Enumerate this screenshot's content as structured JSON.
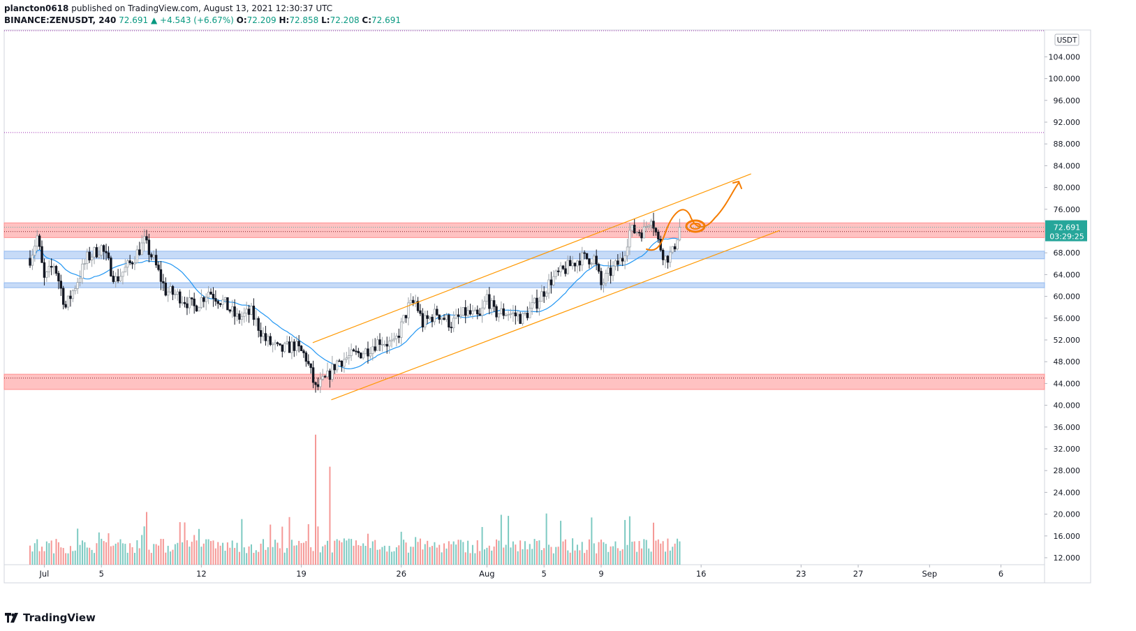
{
  "header": {
    "publisher": "plancton0618",
    "published_text": " published on TradingView.com, August 13, 2021 12:30:37 UTC",
    "symbol": "BINANCE:ZENUSDT, 240",
    "last": "72.691",
    "change": "▲ +4.543 (+6.67%)",
    "o_label": "O:",
    "o_value": "72.209",
    "h_label": "H:",
    "h_value": "72.858",
    "l_label": "L:",
    "l_value": "72.208",
    "c_label": "C:",
    "c_value": "72.691"
  },
  "footer": {
    "brand": "TradingView"
  },
  "colors": {
    "up": "#26a69a",
    "down": "#ef5350",
    "ma": "#2196f3",
    "candle_dark": "#131722",
    "channel": "#ff9800",
    "resistance_zone": "#ff8f8f",
    "support_zone": "#90b8f0",
    "price_label_bg": "#26a69a",
    "dotted_level": "#9c27b0"
  },
  "chart_data": {
    "type": "candlestick",
    "title": "BINANCE:ZENUSDT, 240",
    "currency_label": "USDT",
    "y_ticks": [
      "12.000",
      "16.000",
      "20.000",
      "24.000",
      "28.000",
      "32.000",
      "36.000",
      "40.000",
      "44.000",
      "48.000",
      "52.000",
      "56.000",
      "60.000",
      "64.000",
      "68.000",
      "72.000",
      "76.000",
      "80.000",
      "84.000",
      "88.000",
      "92.000",
      "96.000",
      "100.000",
      "104.000"
    ],
    "ylim": [
      10.5,
      108.5
    ],
    "x_ticks": [
      {
        "label": "Jul",
        "day": 1
      },
      {
        "label": "5",
        "day": 5
      },
      {
        "label": "12",
        "day": 12
      },
      {
        "label": "19",
        "day": 19
      },
      {
        "label": "26",
        "day": 26
      },
      {
        "label": "Aug",
        "day": 32
      },
      {
        "label": "5",
        "day": 36
      },
      {
        "label": "9",
        "day": 40
      },
      {
        "label": "16",
        "day": 47
      },
      {
        "label": "23",
        "day": 54
      },
      {
        "label": "27",
        "day": 58
      },
      {
        "label": "Sep",
        "day": 63
      },
      {
        "label": "6",
        "day": 68
      }
    ],
    "x_range_days": [
      -0.7,
      72.3
    ],
    "current_price": "72.691",
    "countdown": "03:29:25",
    "price_anchors": [
      [
        0,
        67
      ],
      [
        0.5,
        71
      ],
      [
        1,
        63
      ],
      [
        1.7,
        66
      ],
      [
        2.5,
        58
      ],
      [
        3,
        61
      ],
      [
        4,
        67
      ],
      [
        5,
        69
      ],
      [
        6,
        63
      ],
      [
        7,
        66
      ],
      [
        8,
        70
      ],
      [
        8.6,
        67
      ],
      [
        9.5,
        61
      ],
      [
        10.5,
        60
      ],
      [
        11.5,
        58
      ],
      [
        12.5,
        61
      ],
      [
        13.5,
        59
      ],
      [
        14.5,
        56
      ],
      [
        15.5,
        57
      ],
      [
        16.5,
        52
      ],
      [
        17.5,
        50
      ],
      [
        18.5,
        51
      ],
      [
        19.3,
        49
      ],
      [
        20,
        43
      ],
      [
        20.8,
        45
      ],
      [
        21.5,
        48
      ],
      [
        22.5,
        49
      ],
      [
        23.5,
        50
      ],
      [
        24.5,
        52
      ],
      [
        25.5,
        51
      ],
      [
        26.5,
        58
      ],
      [
        27,
        59
      ],
      [
        27.5,
        55
      ],
      [
        28.5,
        57
      ],
      [
        29.5,
        55
      ],
      [
        30.5,
        57
      ],
      [
        31.5,
        56
      ],
      [
        32,
        60
      ],
      [
        32.5,
        57
      ],
      [
        33.5,
        57
      ],
      [
        34.5,
        56
      ],
      [
        35.5,
        59
      ],
      [
        36.5,
        63
      ],
      [
        37.5,
        65
      ],
      [
        38.5,
        67
      ],
      [
        39.5,
        67
      ],
      [
        40,
        62
      ],
      [
        40.5,
        64
      ],
      [
        41.5,
        67
      ],
      [
        42,
        72
      ],
      [
        43,
        72
      ],
      [
        43.5,
        75
      ],
      [
        44,
        70
      ],
      [
        44.5,
        67
      ],
      [
        45,
        68
      ],
      [
        45.5,
        72.7
      ]
    ],
    "moving_average": {
      "name": "MA",
      "color": "#2196f3"
    },
    "zones": [
      {
        "name": "resistance",
        "top": 73.5,
        "bottom": 70.8
      },
      {
        "name": "support-upper",
        "top": 68.3,
        "bottom": 66.9
      },
      {
        "name": "support-lower",
        "top": 62.5,
        "bottom": 61.6
      },
      {
        "name": "demand",
        "top": 45.7,
        "bottom": 42.9
      }
    ],
    "dotted_levels": [
      90.1,
      45.0,
      71.9
    ],
    "channel": {
      "upper": [
        [
          19.8,
          51.5
        ],
        [
          50.5,
          82.5
        ]
      ],
      "lower": [
        [
          21.1,
          41.0
        ],
        [
          52.5,
          72.1
        ]
      ]
    },
    "volume": {
      "max_label": "35",
      "ylim": [
        0,
        36
      ]
    }
  }
}
